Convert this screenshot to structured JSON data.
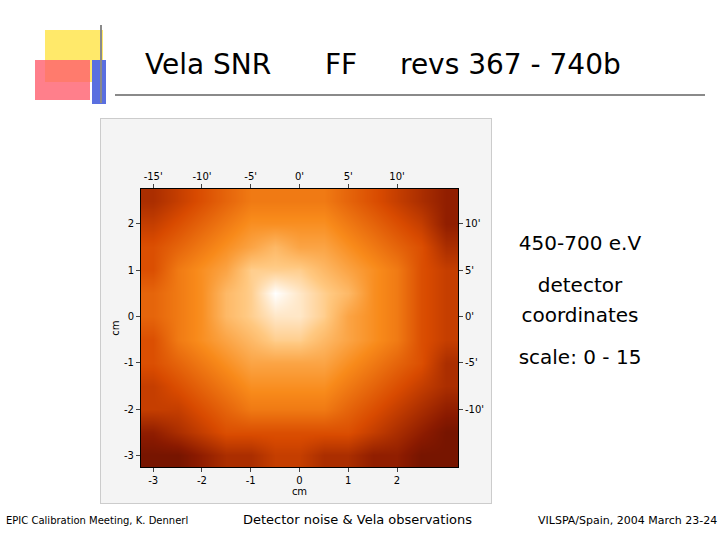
{
  "slide": {
    "title": [
      "Vela SNR",
      "FF",
      "revs 367 - 740b"
    ],
    "notes": [
      "450-700 e.V",
      "detector coordinates",
      "scale: 0 - 15"
    ],
    "footer": {
      "left": "EPIC Calibration Meeting, K. Dennerl",
      "center": "Detector noise & Vela observations",
      "right": "VILSPA/Spain, 2004 March 23-24"
    }
  },
  "chart_data": {
    "type": "heatmap",
    "x": [
      -3.0,
      -2.5,
      -2.0,
      -1.5,
      -1.0,
      -0.5,
      0.0,
      0.5,
      1.0,
      1.5,
      2.0,
      2.5,
      3.0
    ],
    "y": [
      -3.0,
      -2.5,
      -2.0,
      -1.5,
      -1.0,
      -0.5,
      0.0,
      0.5,
      1.0,
      1.5,
      2.0,
      2.5
    ],
    "z": [
      [
        3,
        3,
        4,
        5,
        5,
        6,
        6,
        5,
        5,
        4,
        4,
        3,
        3
      ],
      [
        4,
        5,
        6,
        7,
        7,
        7,
        7,
        7,
        7,
        6,
        5,
        4,
        3
      ],
      [
        6,
        6,
        7,
        8,
        9,
        9,
        9,
        9,
        8,
        7,
        6,
        5,
        4
      ],
      [
        6,
        7,
        8,
        9,
        10,
        10,
        10,
        10,
        9,
        8,
        7,
        6,
        5
      ],
      [
        7,
        8,
        9,
        10,
        11,
        11,
        11,
        11,
        10,
        9,
        8,
        7,
        5
      ],
      [
        7,
        9,
        10,
        11,
        12,
        13,
        13,
        12,
        11,
        10,
        9,
        7,
        6
      ],
      [
        8,
        9,
        10,
        12,
        13,
        14,
        14,
        13,
        11,
        10,
        9,
        7,
        6
      ],
      [
        8,
        9,
        10,
        12,
        13,
        15,
        14,
        13,
        12,
        10,
        9,
        7,
        6
      ],
      [
        7,
        9,
        10,
        11,
        13,
        13,
        13,
        12,
        11,
        10,
        9,
        7,
        6
      ],
      [
        7,
        8,
        9,
        10,
        11,
        12,
        11,
        11,
        10,
        9,
        8,
        7,
        5
      ],
      [
        6,
        7,
        8,
        9,
        10,
        10,
        10,
        10,
        9,
        8,
        7,
        6,
        4
      ],
      [
        5,
        6,
        7,
        8,
        9,
        9,
        9,
        9,
        8,
        7,
        6,
        5,
        4
      ]
    ],
    "zlim": [
      0,
      15
    ],
    "xlabel": "cm",
    "ylabel": "cm",
    "xlim": [
      -3.25,
      3.25
    ],
    "xticks": [
      -3,
      -2,
      -1,
      0,
      1,
      2
    ],
    "ylim": [
      -3.25,
      2.75
    ],
    "yticks": [
      -3,
      -2,
      -1,
      0,
      1,
      2
    ],
    "x2lim": [
      -16.25,
      16.25
    ],
    "x2ticks": [
      {
        "value": -15,
        "label": "-15'"
      },
      {
        "value": -10,
        "label": "-10'"
      },
      {
        "value": -5,
        "label": "-5'"
      },
      {
        "value": 0,
        "label": "0'"
      },
      {
        "value": 5,
        "label": "5'"
      },
      {
        "value": 10,
        "label": "10'"
      }
    ],
    "y2lim": [
      -16.25,
      13.75
    ],
    "y2ticks": [
      {
        "value": -10,
        "label": "-10'"
      },
      {
        "value": -5,
        "label": "-5'"
      },
      {
        "value": 0,
        "label": "0'"
      },
      {
        "value": 5,
        "label": "5'"
      },
      {
        "value": 10,
        "label": "10'"
      }
    ]
  }
}
